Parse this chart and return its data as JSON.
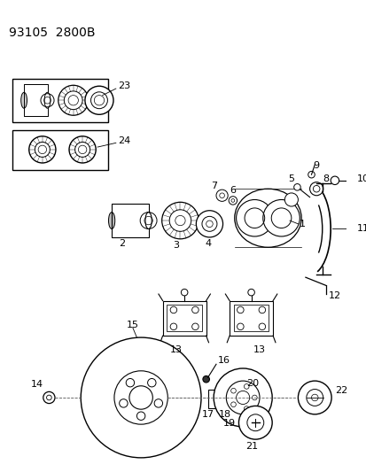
{
  "title": "93105  2800B",
  "bg_color": "#ffffff",
  "line_color": "#000000",
  "title_fontsize": 10,
  "label_fontsize": 8,
  "fig_width": 4.14,
  "fig_height": 5.33,
  "dpi": 100
}
